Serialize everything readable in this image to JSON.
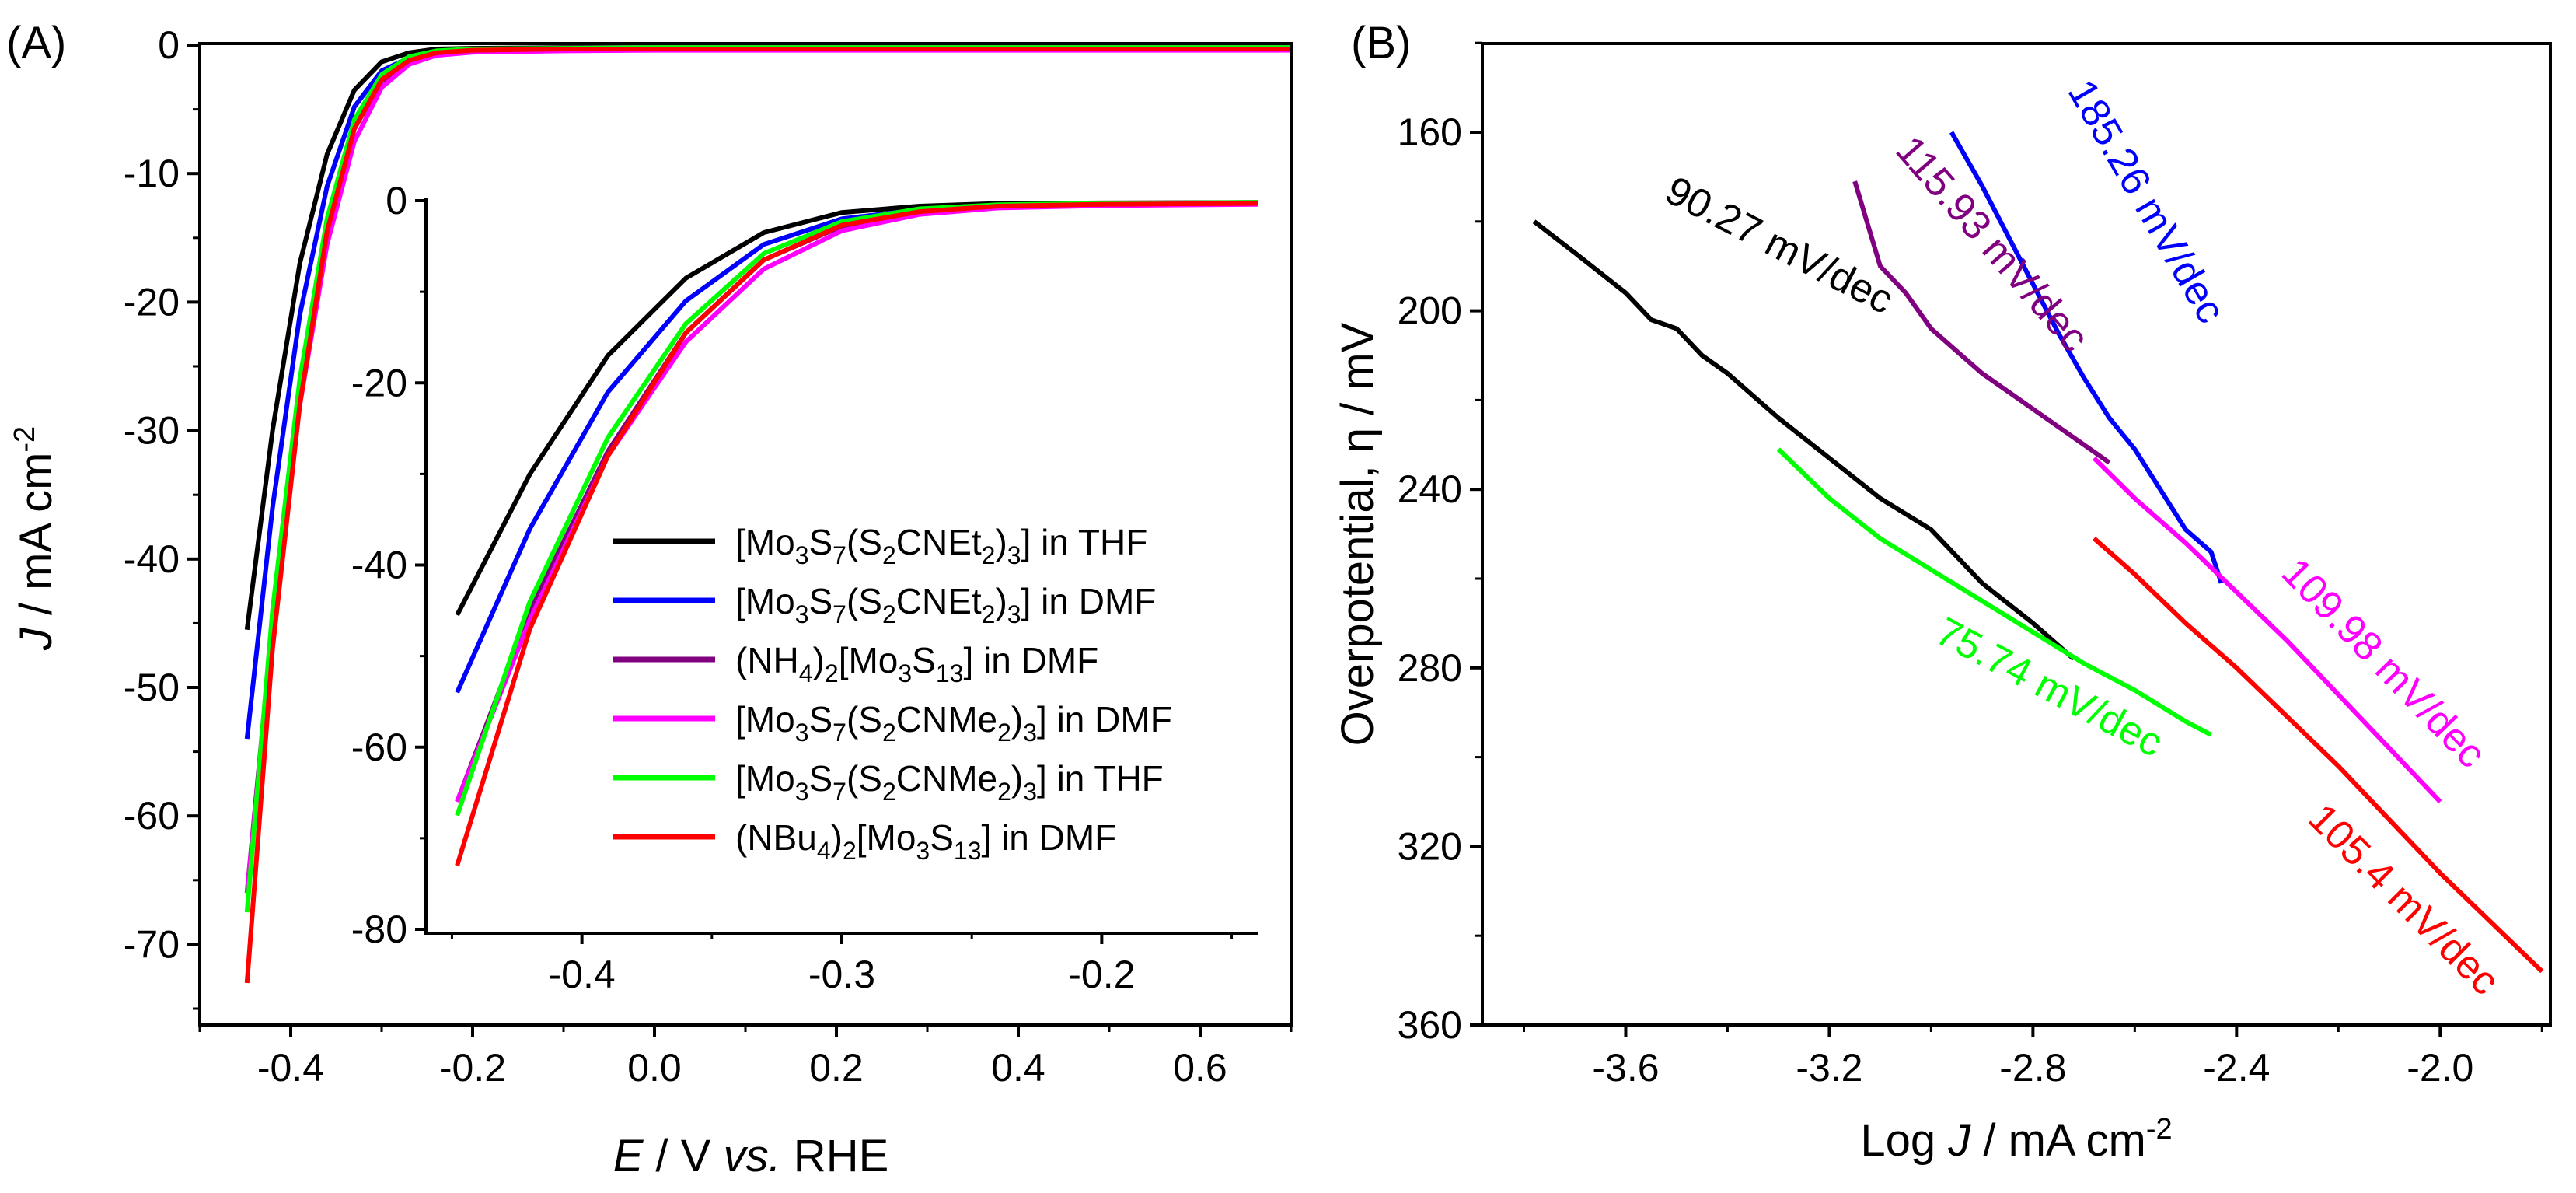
{
  "chart_data": [
    {
      "panel_label": "(A)",
      "type": "line",
      "xlabel": {
        "var": "E",
        "rest": " / V ",
        "vs": "vs.",
        "ref": " RHE"
      },
      "ylabel": {
        "var": "J",
        "unit": " / mA cm",
        "exp": "-2"
      },
      "xlim": [
        -0.5,
        0.7
      ],
      "ylim": [
        -75,
        0
      ],
      "xticks": [
        -0.4,
        -0.2,
        0.0,
        0.2,
        0.4,
        0.6
      ],
      "xtick_labels": [
        "-0.4",
        "-0.2",
        "0.0",
        "0.2",
        "0.4",
        "0.6"
      ],
      "yticks": [
        0,
        -10,
        -20,
        -30,
        -40,
        -50,
        -60,
        -70
      ],
      "ytick_labels": [
        "0",
        "-10",
        "-20",
        "-30",
        "-40",
        "-50",
        "-60",
        "-70"
      ],
      "series": [
        {
          "name": "[Mo3S7(S2CNEt2)3] in THF",
          "color": "#000000",
          "x": [
            -0.448,
            -0.42,
            -0.39,
            -0.36,
            -0.33,
            -0.3,
            -0.27,
            -0.24,
            -0.2,
            -0.1,
            0.0,
            0.2,
            0.4,
            0.7
          ],
          "y": [
            -45.5,
            -30.0,
            -17.0,
            -8.5,
            -3.5,
            -1.3,
            -0.6,
            -0.3,
            -0.25,
            -0.2,
            -0.2,
            -0.2,
            -0.2,
            -0.2
          ]
        },
        {
          "name": "[Mo3S7(S2CNEt2)3] in DMF",
          "color": "#0000ff",
          "x": [
            -0.448,
            -0.42,
            -0.39,
            -0.36,
            -0.33,
            -0.3,
            -0.27,
            -0.24,
            -0.2,
            -0.1,
            0.0,
            0.2,
            0.4,
            0.7
          ],
          "y": [
            -54.0,
            -36.0,
            -21.0,
            -11.0,
            -4.8,
            -2.0,
            -1.0,
            -0.6,
            -0.45,
            -0.35,
            -0.3,
            -0.3,
            -0.3,
            -0.3
          ]
        },
        {
          "name": "(NH4)2[Mo3S13] in DMF",
          "color": "#800080",
          "x": [
            -0.448,
            -0.42,
            -0.39,
            -0.36,
            -0.33,
            -0.3,
            -0.27,
            -0.24,
            -0.2,
            -0.1,
            0.0,
            0.2,
            0.4,
            0.7
          ],
          "y": [
            -66.0,
            -45.0,
            -27.5,
            -14.5,
            -6.5,
            -2.8,
            -1.3,
            -0.7,
            -0.5,
            -0.4,
            -0.35,
            -0.35,
            -0.35,
            -0.35
          ]
        },
        {
          "name": "[Mo3S7(S2CNMe2)3] in DMF",
          "color": "#ff00ff",
          "x": [
            -0.448,
            -0.42,
            -0.39,
            -0.36,
            -0.33,
            -0.3,
            -0.27,
            -0.24,
            -0.2,
            -0.1,
            0.0,
            0.2,
            0.4,
            0.7
          ],
          "y": [
            -66.0,
            -46.0,
            -28.0,
            -15.5,
            -7.5,
            -3.3,
            -1.5,
            -0.8,
            -0.55,
            -0.45,
            -0.4,
            -0.4,
            -0.4,
            -0.4
          ]
        },
        {
          "name": "[Mo3S7(S2CNMe2)3] in THF",
          "color": "#00ff00",
          "x": [
            -0.448,
            -0.42,
            -0.39,
            -0.36,
            -0.33,
            -0.3,
            -0.27,
            -0.24,
            -0.2,
            -0.1,
            0.0,
            0.2,
            0.4,
            0.7
          ],
          "y": [
            -67.5,
            -44.0,
            -26.0,
            -13.5,
            -5.8,
            -2.3,
            -0.9,
            -0.45,
            -0.3,
            -0.25,
            -0.2,
            -0.2,
            -0.2,
            -0.2
          ]
        },
        {
          "name": "(NBu4)2[Mo3S13] in DMF",
          "color": "#ff0000",
          "x": [
            -0.448,
            -0.42,
            -0.39,
            -0.36,
            -0.33,
            -0.3,
            -0.27,
            -0.24,
            -0.2,
            -0.1,
            0.0,
            0.2,
            0.4,
            0.7
          ],
          "y": [
            -73.0,
            -47.0,
            -28.0,
            -14.5,
            -6.5,
            -2.7,
            -1.2,
            -0.6,
            -0.4,
            -0.3,
            -0.3,
            -0.3,
            -0.3,
            -0.3
          ]
        }
      ],
      "inset": {
        "xlim": [
          -0.46,
          -0.14
        ],
        "ylim": [
          -80,
          0
        ],
        "xticks": [
          -0.4,
          -0.3,
          -0.2
        ],
        "xtick_labels": [
          "-0.4",
          "-0.3",
          "-0.2"
        ],
        "yticks": [
          0,
          -20,
          -40,
          -60,
          -80
        ],
        "ytick_labels": [
          "0",
          "-20",
          "-40",
          "-60",
          "-80"
        ],
        "legend": [
          {
            "text": [
              [
                "[Mo",
                ""
              ],
              [
                "3",
                "sub"
              ],
              [
                "S",
                ""
              ],
              [
                "7",
                "sub"
              ],
              [
                "(S",
                ""
              ],
              [
                "2",
                "sub"
              ],
              [
                "CNEt",
                ""
              ],
              [
                "2",
                "sub"
              ],
              [
                ")",
                ""
              ],
              [
                "3",
                "sub"
              ],
              [
                "] in THF",
                ""
              ]
            ],
            "color": "#000000"
          },
          {
            "text": [
              [
                "[Mo",
                ""
              ],
              [
                "3",
                "sub"
              ],
              [
                "S",
                ""
              ],
              [
                "7",
                "sub"
              ],
              [
                "(S",
                ""
              ],
              [
                "2",
                "sub"
              ],
              [
                "CNEt",
                ""
              ],
              [
                "2",
                "sub"
              ],
              [
                ")",
                ""
              ],
              [
                "3",
                "sub"
              ],
              [
                "] in DMF",
                ""
              ]
            ],
            "color": "#0000ff"
          },
          {
            "text": [
              [
                "(NH",
                ""
              ],
              [
                "4",
                "sub"
              ],
              [
                ")",
                ""
              ],
              [
                "2",
                "sub"
              ],
              [
                "[Mo",
                ""
              ],
              [
                "3",
                "sub"
              ],
              [
                "S",
                ""
              ],
              [
                "13",
                "sub"
              ],
              [
                "] in DMF",
                ""
              ]
            ],
            "color": "#800080"
          },
          {
            "text": [
              [
                "[Mo",
                ""
              ],
              [
                "3",
                "sub"
              ],
              [
                "S",
                ""
              ],
              [
                "7",
                "sub"
              ],
              [
                "(S",
                ""
              ],
              [
                "2",
                "sub"
              ],
              [
                "CNMe",
                ""
              ],
              [
                "2",
                "sub"
              ],
              [
                ")",
                ""
              ],
              [
                "3",
                "sub"
              ],
              [
                "] in DMF",
                ""
              ]
            ],
            "color": "#ff00ff"
          },
          {
            "text": [
              [
                "[Mo",
                ""
              ],
              [
                "3",
                "sub"
              ],
              [
                "S",
                ""
              ],
              [
                "7",
                "sub"
              ],
              [
                "(S",
                ""
              ],
              [
                "2",
                "sub"
              ],
              [
                "CNMe",
                ""
              ],
              [
                "2",
                "sub"
              ],
              [
                ")",
                ""
              ],
              [
                "3",
                "sub"
              ],
              [
                "] in THF",
                ""
              ]
            ],
            "color": "#00ff00"
          },
          {
            "text": [
              [
                "(NBu",
                ""
              ],
              [
                "4",
                "sub"
              ],
              [
                ")",
                ""
              ],
              [
                "2",
                "sub"
              ],
              [
                "[Mo",
                ""
              ],
              [
                "3",
                "sub"
              ],
              [
                "S",
                ""
              ],
              [
                "13",
                "sub"
              ],
              [
                "] in DMF",
                ""
              ]
            ],
            "color": "#ff0000"
          }
        ]
      }
    },
    {
      "panel_label": "(B)",
      "type": "line",
      "xlabel": {
        "pre": "Log ",
        "var": "J",
        "unit": " / mA cm",
        "exp": "-2"
      },
      "ylabel": {
        "text": "Overpotential, η / mV"
      },
      "xlim": [
        -3.9,
        -1.75
      ],
      "ylim": [
        360,
        130
      ],
      "y_inverted": true,
      "xticks": [
        -3.6,
        -3.2,
        -2.8,
        -2.4,
        -2.0
      ],
      "xtick_labels": [
        "-3.6",
        "-3.2",
        "-2.8",
        "-2.4",
        "-2.0"
      ],
      "yticks": [
        160,
        200,
        240,
        280,
        320,
        360
      ],
      "ytick_labels": [
        "160",
        "200",
        "240",
        "280",
        "320",
        "360"
      ],
      "series": [
        {
          "name": "90.27 mV/dec",
          "color": "#000000",
          "x": [
            -3.78,
            -3.7,
            -3.6,
            -3.55,
            -3.5,
            -3.45,
            -3.4,
            -3.3,
            -3.2,
            -3.1,
            -3.0,
            -2.9,
            -2.8,
            -2.72
          ],
          "y": [
            180,
            187,
            196,
            202,
            204,
            210,
            214,
            224,
            233,
            242,
            249,
            261,
            270,
            278
          ]
        },
        {
          "name": "75.74 mV/dec",
          "color": "#00ff00",
          "x": [
            -3.3,
            -3.2,
            -3.1,
            -3.0,
            -2.9,
            -2.8,
            -2.7,
            -2.6,
            -2.5,
            -2.45
          ],
          "y": [
            231,
            242,
            251,
            258,
            265,
            272,
            279,
            285,
            292,
            295
          ]
        },
        {
          "name": "115.93 mV/dec",
          "color": "#800080",
          "x": [
            -3.15,
            -3.1,
            -3.05,
            -3.0,
            -2.9,
            -2.8,
            -2.7,
            -2.65
          ],
          "y": [
            171,
            190,
            196,
            204,
            214,
            222,
            230,
            234
          ]
        },
        {
          "name": "185.26 mV/dec",
          "color": "#0000ff",
          "x": [
            -2.96,
            -2.9,
            -2.85,
            -2.8,
            -2.75,
            -2.7,
            -2.65,
            -2.6,
            -2.55,
            -2.5,
            -2.45,
            -2.43
          ],
          "y": [
            160,
            172,
            183,
            194,
            205,
            215,
            224,
            231,
            240,
            249,
            254,
            261
          ]
        },
        {
          "name": "109.98 mV/dec",
          "color": "#ff00ff",
          "x": [
            -2.68,
            -2.6,
            -2.5,
            -2.4,
            -2.3,
            -2.2,
            -2.1,
            -2.0
          ],
          "y": [
            233,
            242,
            252,
            263,
            274,
            286,
            298,
            310
          ]
        },
        {
          "name": "105.4 mV/dec",
          "color": "#ff0000",
          "x": [
            -2.68,
            -2.6,
            -2.5,
            -2.4,
            -2.3,
            -2.2,
            -2.1,
            -2.0,
            -1.9,
            -1.8
          ],
          "y": [
            251,
            259,
            270,
            280,
            291,
            302,
            314,
            326,
            337,
            348
          ]
        }
      ],
      "annotations": [
        {
          "text": "90.27 mV/dec",
          "color": "#000000",
          "x": -3.31,
          "y": 188,
          "angle": 27.5
        },
        {
          "text": "115.93 mV/dec",
          "color": "#800080",
          "x": -2.9,
          "y": 187,
          "angle": 49
        },
        {
          "text": "185.26 mV/dec",
          "color": "#0000ff",
          "x": -2.6,
          "y": 177,
          "angle": 60
        },
        {
          "text": "109.98 mV/dec",
          "color": "#ff00ff",
          "x": -2.13,
          "y": 281,
          "angle": 46
        },
        {
          "text": "75.74 mV/dec",
          "color": "#00ff00",
          "x": -2.78,
          "y": 287,
          "angle": 28
        },
        {
          "text": "105.4 mV/dec",
          "color": "#ff0000",
          "x": -2.09,
          "y": 334,
          "angle": 45
        }
      ]
    }
  ]
}
